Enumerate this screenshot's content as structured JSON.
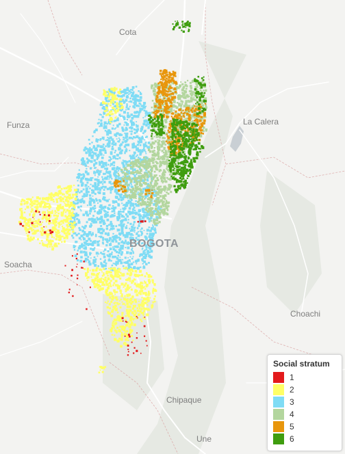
{
  "places": [
    {
      "id": "cota",
      "label": "Cota"
    },
    {
      "id": "funza",
      "label": "Funza"
    },
    {
      "id": "la-calera",
      "label": "La Calera"
    },
    {
      "id": "bogota",
      "label": "BOGOTA"
    },
    {
      "id": "soacha",
      "label": "Soacha"
    },
    {
      "id": "choachi",
      "label": "Choachi"
    },
    {
      "id": "chipaque",
      "label": "Chipaque"
    },
    {
      "id": "une",
      "label": "Une"
    }
  ],
  "legend": {
    "title": "Social stratum",
    "items": [
      {
        "label": "1",
        "color": "#e31a1c"
      },
      {
        "label": "2",
        "color": "#ffff66"
      },
      {
        "label": "3",
        "color": "#7fdcf5"
      },
      {
        "label": "4",
        "color": "#b3d69e"
      },
      {
        "label": "5",
        "color": "#e8960c"
      },
      {
        "label": "6",
        "color": "#3f9d0f"
      }
    ]
  },
  "colors": {
    "background": "#f3f3f1",
    "road": "#ffffff",
    "boundary": "#d9a0a0",
    "water": "#c9cfd4"
  }
}
